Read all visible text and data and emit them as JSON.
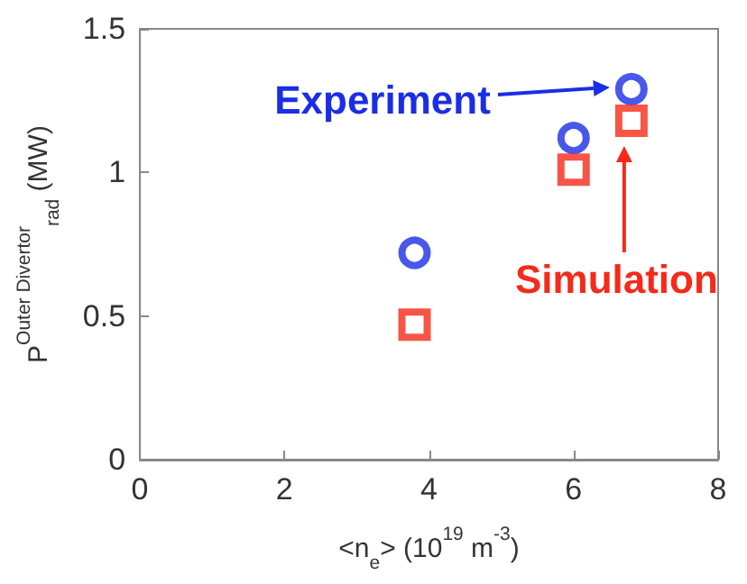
{
  "chart_data": {
    "type": "scatter",
    "xlabel": "<n$_{e}$> (10$^{19}$ m$^{-3}$)",
    "ylabel": "P$^{Outer Divertor}$$_{rad}$ (MW)",
    "x": [
      3.8,
      6.0,
      6.8
    ],
    "series": [
      {
        "name": "Experiment",
        "color": "#1a2ee6",
        "marker": "circle",
        "values": [
          0.72,
          1.12,
          1.29
        ]
      },
      {
        "name": "Simulation",
        "color": "#f52a1a",
        "marker": "square",
        "values": [
          0.47,
          1.01,
          1.18
        ]
      }
    ],
    "xlim": [
      0,
      8
    ],
    "xticks": [
      0,
      2,
      4,
      6,
      8
    ],
    "ylim": [
      0,
      1.5
    ],
    "yticks": [
      0,
      0.5,
      1,
      1.5
    ],
    "grid": false,
    "legend": "top right"
  }
}
